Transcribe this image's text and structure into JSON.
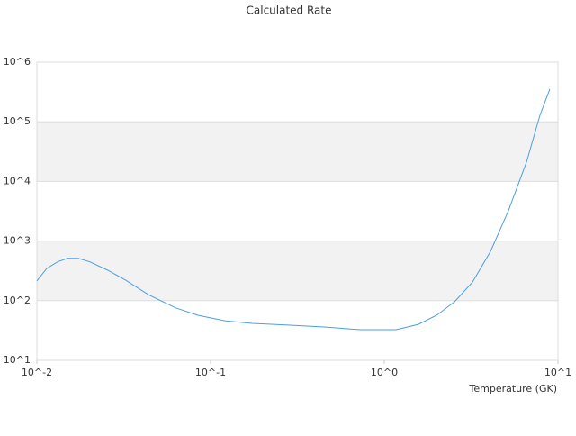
{
  "chart_data": {
    "type": "line",
    "title": "Calculated Rate",
    "x_label": "Temperature (GK)",
    "xscale": "log",
    "yscale": "log",
    "xlim": [
      0.01,
      10
    ],
    "ylim": [
      10,
      1000000
    ],
    "xticks": [
      {
        "value": 0.01,
        "label": "10^-2"
      },
      {
        "value": 0.1,
        "label": "10^-1"
      },
      {
        "value": 1,
        "label": "10^0"
      },
      {
        "value": 10,
        "label": "10^1"
      }
    ],
    "yticks": [
      {
        "value": 10,
        "label": "10^1"
      },
      {
        "value": 100,
        "label": "10^2"
      },
      {
        "value": 1000,
        "label": "10^3"
      },
      {
        "value": 10000,
        "label": "10^4"
      },
      {
        "value": 100000,
        "label": "10^5"
      },
      {
        "value": 1000000,
        "label": "10^6"
      }
    ],
    "grid": true,
    "series": [
      {
        "color": "#4a9ee6",
        "x": [
          0.01,
          0.0114,
          0.01315,
          0.015,
          0.0173,
          0.0202,
          0.0256,
          0.0326,
          0.0439,
          0.0628,
          0.0845,
          0.121,
          0.173,
          0.279,
          0.45,
          0.724,
          1.17,
          1.57,
          2.0,
          2.54,
          3.22,
          4.09,
          5.19,
          6.59,
          7.88,
          8.98
        ],
        "values": [
          214,
          347,
          447,
          513,
          513,
          447,
          324,
          219,
          126,
          76,
          57,
          46,
          41.6,
          38.9,
          36.2,
          32.6,
          32.6,
          40,
          57,
          96,
          205,
          672,
          3240,
          21000,
          129000,
          355000
        ]
      }
    ]
  }
}
